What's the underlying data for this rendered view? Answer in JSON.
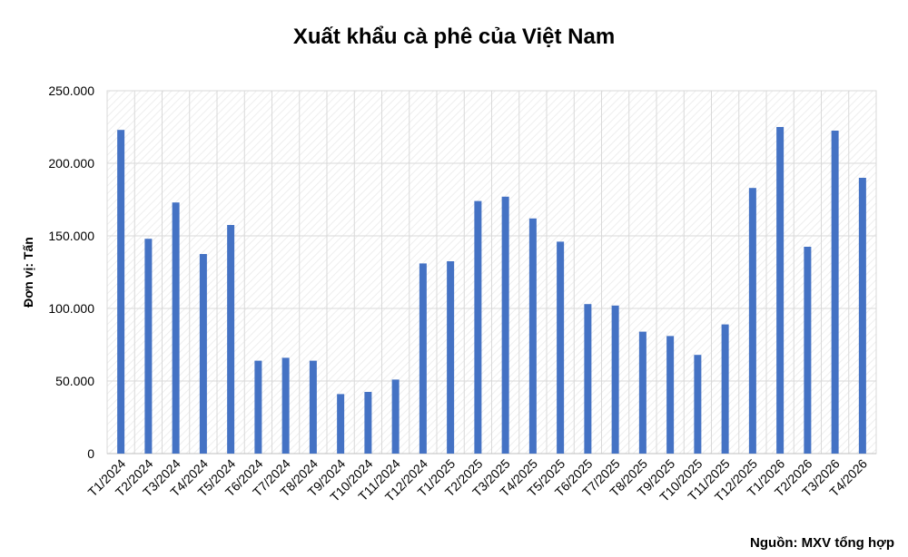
{
  "chart_data": {
    "type": "bar",
    "title": "Xuất khẩu cà phê của Việt Nam",
    "y_label": "Đơn vị: Tấn",
    "source": "Nguồn: MXV tổng hợp",
    "categories": [
      "T1/2024",
      "T2/2024",
      "T3/2024",
      "T4/2024",
      "T5/2024",
      "T6/2024",
      "T7/2024",
      "T8/2024",
      "T9/2024",
      "T10/2024",
      "T11/2024",
      "T12/2024",
      "T1/2025",
      "T2/2025",
      "T3/2025",
      "T4/2025",
      "T5/2025",
      "T6/2025",
      "T7/2025",
      "T8/2025",
      "T9/2025",
      "T10/2025",
      "T11/2025",
      "T12/2025",
      "T1/2026",
      "T2/2026",
      "T3/2026",
      "T4/2026"
    ],
    "values": [
      223000,
      148000,
      173000,
      137500,
      157500,
      64000,
      66000,
      64000,
      41000,
      42500,
      51000,
      131000,
      132500,
      174000,
      177000,
      162000,
      146000,
      103000,
      102000,
      84000,
      81000,
      68000,
      89000,
      183000,
      225000,
      142500,
      222500,
      190000
    ],
    "color": "#4472c4",
    "ylim": [
      0,
      250000
    ],
    "yticks": [
      0,
      {
        "value": 50000,
        "label": "50.000"
      },
      {
        "value": 100000,
        "label": "100.000"
      },
      {
        "value": 150000,
        "label": "150.000"
      },
      {
        "value": 200000,
        "label": "200.000"
      },
      {
        "value": 250000,
        "label": "250.000"
      }
    ],
    "grid": true
  }
}
